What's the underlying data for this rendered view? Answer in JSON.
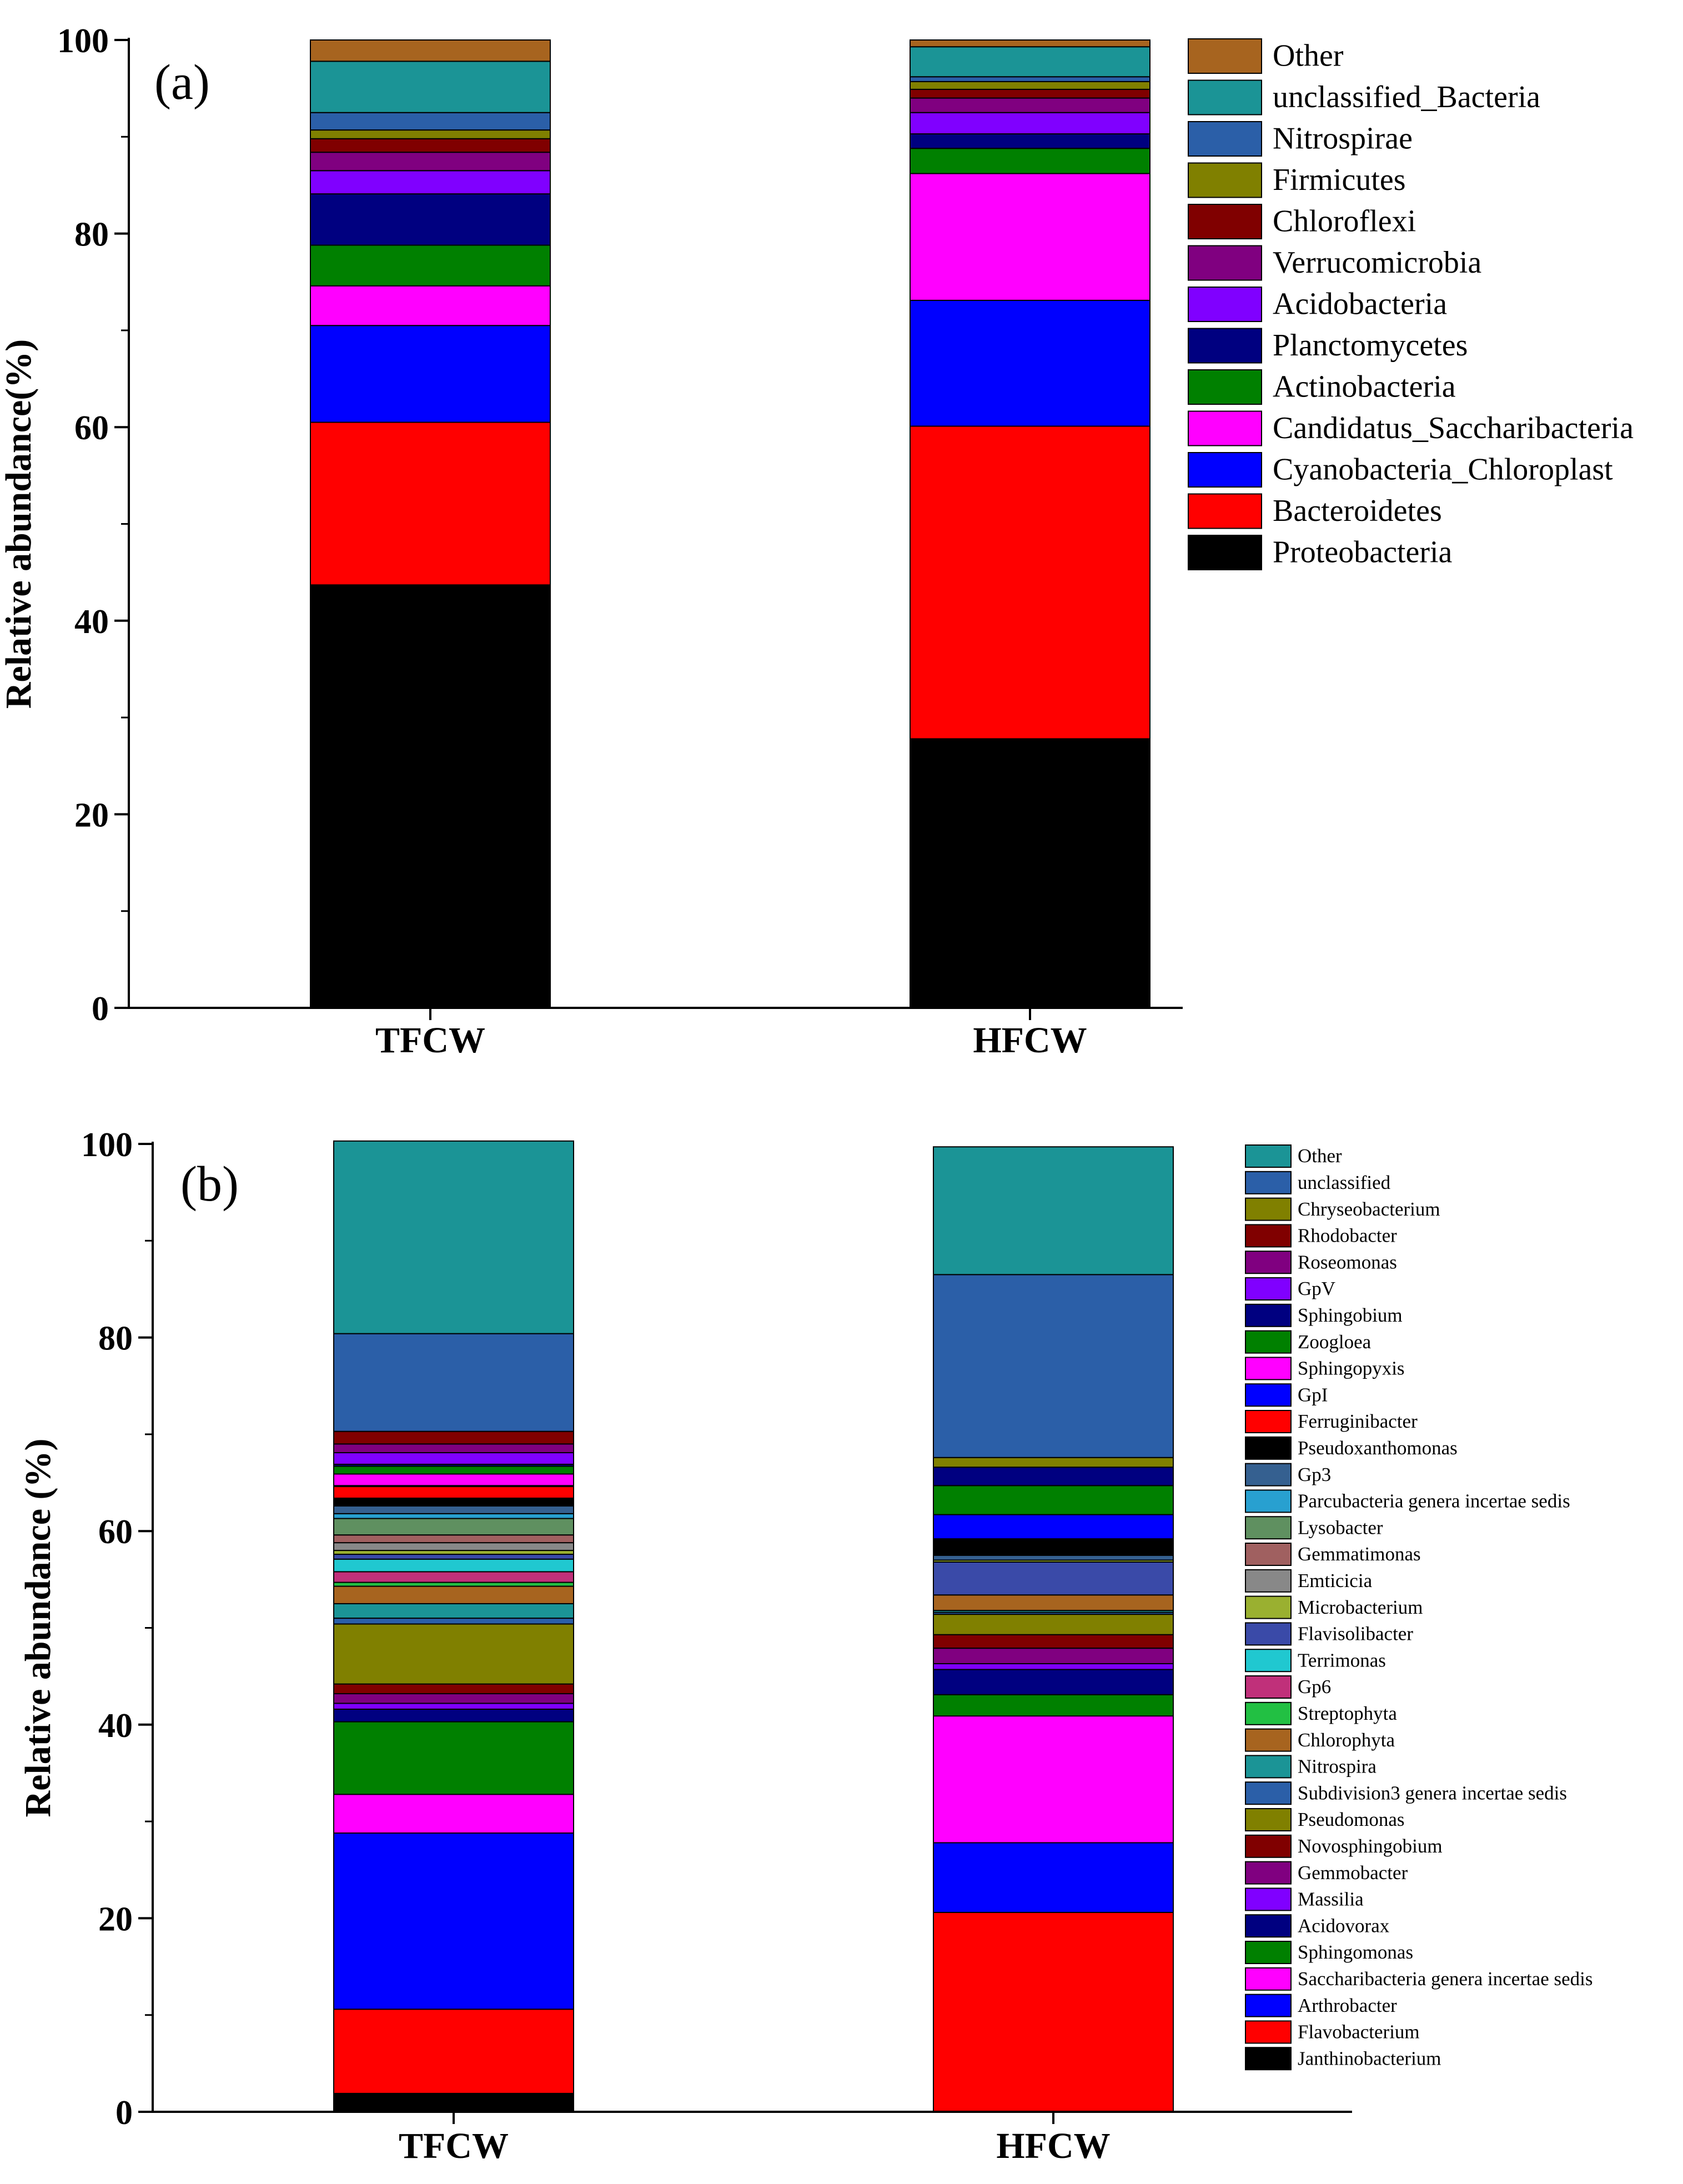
{
  "chart_data": [
    {
      "type": "bar",
      "stacked": true,
      "panel_label": "(a)",
      "ylabel": "Relative abundance(%)",
      "ylim": [
        0,
        100
      ],
      "yticks": [
        "0",
        "20",
        "40",
        "60",
        "80",
        "100"
      ],
      "categories": [
        "TFCW",
        "HFCW"
      ],
      "legend_position": "right",
      "series": [
        {
          "name": "Proteobacteria",
          "color": "#000000",
          "values": [
            43.7,
            27.8
          ]
        },
        {
          "name": "Bacteroidetes",
          "color": "#FF0000",
          "values": [
            16.8,
            32.3
          ]
        },
        {
          "name": "Cyanobacteria_Chloroplast",
          "color": "#0000FF",
          "values": [
            10.0,
            13.0
          ]
        },
        {
          "name": "Candidatus_Saccharibacteria",
          "color": "#FF00FF",
          "values": [
            4.1,
            13.1
          ]
        },
        {
          "name": "Actinobacteria",
          "color": "#008000",
          "values": [
            4.2,
            2.6
          ]
        },
        {
          "name": "Planctomycetes",
          "color": "#000080",
          "values": [
            5.3,
            1.5
          ]
        },
        {
          "name": "Acidobacteria",
          "color": "#8000FF",
          "values": [
            2.4,
            2.2
          ]
        },
        {
          "name": "Verrucomicrobia",
          "color": "#800080",
          "values": [
            1.9,
            1.5
          ]
        },
        {
          "name": "Chloroflexi",
          "color": "#800000",
          "values": [
            1.4,
            0.9
          ]
        },
        {
          "name": "Firmicutes",
          "color": "#808000",
          "values": [
            0.9,
            0.8
          ]
        },
        {
          "name": "Nitrospirae",
          "color": "#2B5FA8",
          "values": [
            1.8,
            0.5
          ]
        },
        {
          "name": "unclassified_Bacteria",
          "color": "#1B9496",
          "values": [
            5.3,
            3.1
          ]
        },
        {
          "name": "Other",
          "color": "#A7641F",
          "values": [
            2.2,
            0.7
          ]
        }
      ]
    },
    {
      "type": "bar",
      "stacked": true,
      "panel_label": "(b)",
      "ylabel": "Relative abundance (%)",
      "ylim": [
        0,
        100
      ],
      "yticks": [
        "0",
        "20",
        "40",
        "60",
        "80",
        "100"
      ],
      "categories": [
        "TFCW",
        "HFCW"
      ],
      "legend_position": "right",
      "series": [
        {
          "name": "Janthinobacterium",
          "color": "#000000",
          "values": [
            1.9,
            0.0
          ]
        },
        {
          "name": "Flavobacterium",
          "color": "#FF0000",
          "values": [
            8.7,
            20.6
          ]
        },
        {
          "name": "Arthrobacter",
          "color": "#0000FF",
          "values": [
            18.2,
            7.2
          ]
        },
        {
          "name": "Saccharibacteria genera incertae sedis",
          "color": "#FF00FF",
          "values": [
            4.0,
            13.1
          ]
        },
        {
          "name": "Sphingomonas",
          "color": "#008000",
          "values": [
            7.5,
            2.2
          ]
        },
        {
          "name": "Acidovorax",
          "color": "#000080",
          "values": [
            1.3,
            2.6
          ]
        },
        {
          "name": "Massilia",
          "color": "#8000FF",
          "values": [
            0.6,
            0.6
          ]
        },
        {
          "name": "Gemmobacter",
          "color": "#800080",
          "values": [
            1.0,
            1.6
          ]
        },
        {
          "name": "Novosphingobium",
          "color": "#800000",
          "values": [
            1.0,
            1.4
          ]
        },
        {
          "name": "Pseudomonas",
          "color": "#808000",
          "values": [
            6.2,
            2.1
          ]
        },
        {
          "name": "Subdivision3 genera incertae sedis",
          "color": "#2B5FA8",
          "values": [
            0.6,
            0.2
          ]
        },
        {
          "name": "Nitrospira",
          "color": "#1B9496",
          "values": [
            1.5,
            0.2
          ]
        },
        {
          "name": "Chlorophyta",
          "color": "#A7641F",
          "values": [
            1.8,
            1.6
          ]
        },
        {
          "name": "Streptophyta",
          "color": "#22C043",
          "values": [
            0.4,
            0.0
          ]
        },
        {
          "name": "Gp6",
          "color": "#C0307A",
          "values": [
            1.1,
            0.0
          ]
        },
        {
          "name": "Terrimonas",
          "color": "#20C8D0",
          "values": [
            1.3,
            0.0
          ]
        },
        {
          "name": "Flavisolibacter",
          "color": "#3A4AA8",
          "values": [
            0.5,
            3.4
          ]
        },
        {
          "name": "Microbacterium",
          "color": "#9AB030",
          "values": [
            0.4,
            0.2
          ]
        },
        {
          "name": "Emticicia",
          "color": "#888888",
          "values": [
            0.8,
            0.0
          ]
        },
        {
          "name": "Gemmatimonas",
          "color": "#A06060",
          "values": [
            0.8,
            0.0
          ]
        },
        {
          "name": "Lysobacter",
          "color": "#5F9060",
          "values": [
            1.7,
            0.0
          ]
        },
        {
          "name": "Parcubacteria genera incertae sedis",
          "color": "#28A0D0",
          "values": [
            0.5,
            0.0
          ]
        },
        {
          "name": "Gp3",
          "color": "#356090",
          "values": [
            0.8,
            0.5
          ]
        },
        {
          "name": "Pseudoxanthomonas",
          "color": "#000000",
          "values": [
            0.8,
            1.7
          ]
        },
        {
          "name": "Ferruginibacter",
          "color": "#FF0000",
          "values": [
            1.2,
            0.0
          ]
        },
        {
          "name": "GpI",
          "color": "#0000FF",
          "values": [
            0.1,
            2.5
          ]
        },
        {
          "name": "Sphingopyxis",
          "color": "#FF00FF",
          "values": [
            1.2,
            0.0
          ]
        },
        {
          "name": "Zoogloea",
          "color": "#008000",
          "values": [
            0.8,
            3.0
          ]
        },
        {
          "name": "Sphingobium",
          "color": "#000080",
          "values": [
            0.2,
            1.9
          ]
        },
        {
          "name": "GpV",
          "color": "#8000FF",
          "values": [
            1.2,
            0.0
          ]
        },
        {
          "name": "Roseomonas",
          "color": "#800080",
          "values": [
            0.9,
            0.0
          ]
        },
        {
          "name": "Rhodobacter",
          "color": "#800000",
          "values": [
            1.3,
            0.0
          ]
        },
        {
          "name": "Chryseobacterium",
          "color": "#808000",
          "values": [
            0.0,
            1.0
          ]
        },
        {
          "name": "unclassified",
          "color": "#2B5FA8",
          "values": [
            10.1,
            18.9
          ]
        },
        {
          "name": "Other",
          "color": "#1B9496",
          "values": [
            19.9,
            13.2
          ]
        }
      ]
    }
  ]
}
